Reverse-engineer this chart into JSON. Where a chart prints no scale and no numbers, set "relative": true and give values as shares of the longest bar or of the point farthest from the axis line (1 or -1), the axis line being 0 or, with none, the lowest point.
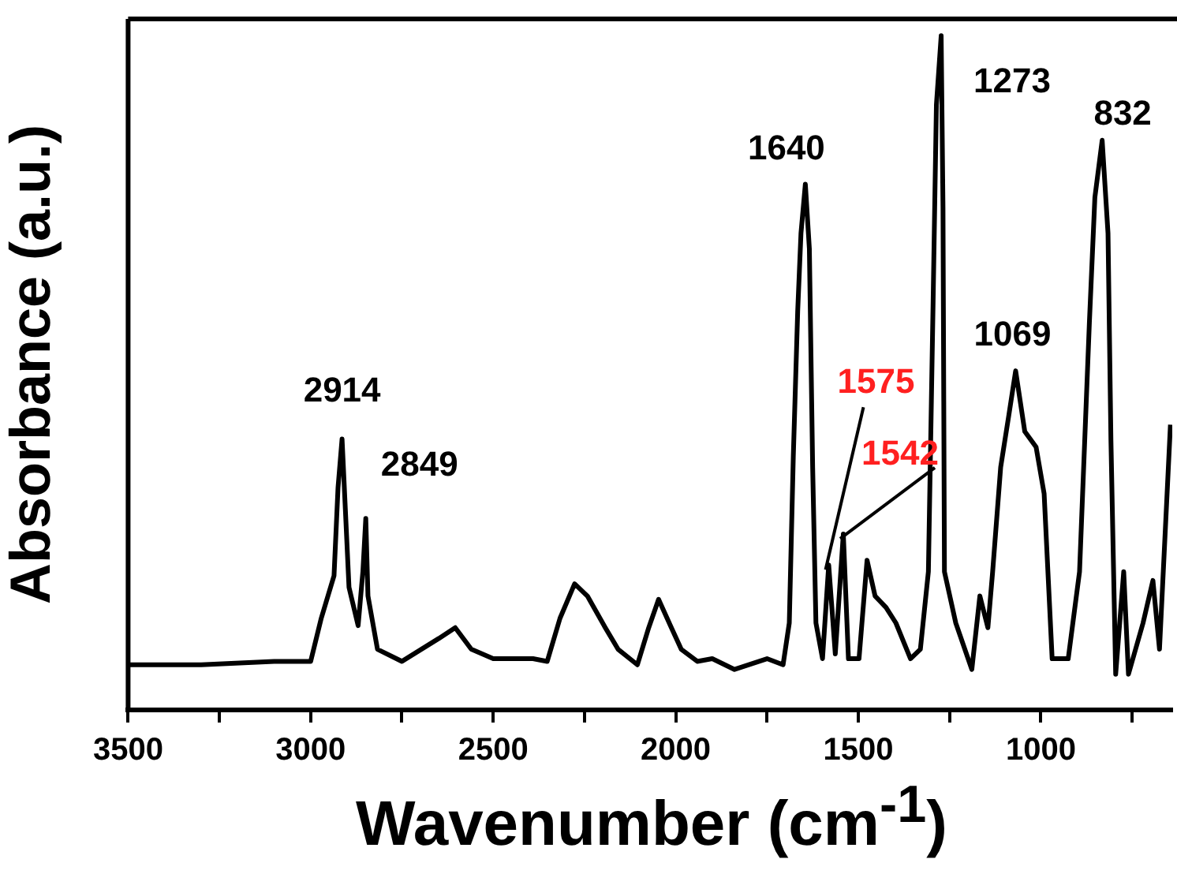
{
  "chart_data": {
    "type": "line",
    "relative": true,
    "xlabel": "Wavenumber (cm$^{-1}$)",
    "ylabel": "Absorbance (a.u.)",
    "xlim": [
      3500,
      640
    ],
    "xticks": [
      3500,
      {
        "value": 3250,
        "label": null
      },
      3000,
      {
        "value": 2750,
        "label": null
      },
      2500,
      {
        "value": 2250,
        "label": null
      },
      2000,
      {
        "value": 1750,
        "label": null
      },
      1500,
      {
        "value": 1250,
        "label": null
      },
      1000,
      {
        "value": 750,
        "label": null
      }
    ],
    "grid": false,
    "legend": false,
    "marker": "none",
    "line_style": "solid",
    "series": [
      {
        "color": "#000000",
        "x": [
          3500,
          3300,
          3100,
          3000,
          2971,
          2936,
          2925,
          2914,
          2905,
          2895,
          2870,
          2857,
          2849,
          2843,
          2817,
          2750,
          2649,
          2604,
          2560,
          2500,
          2391,
          2352,
          2317,
          2277,
          2242,
          2193,
          2158,
          2105,
          2074,
          2047,
          2012,
          1985,
          1941,
          1900,
          1839,
          1750,
          1706,
          1689,
          1678,
          1666,
          1657,
          1645,
          1634,
          1625,
          1616,
          1598,
          1581,
          1563,
          1541,
          1527,
          1498,
          1476,
          1454,
          1424,
          1397,
          1357,
          1330,
          1308,
          1295,
          1286,
          1273,
          1268,
          1264,
          1233,
          1189,
          1167,
          1145,
          1132,
          1110,
          1088,
          1069,
          1044,
          1013,
          991,
          969,
          925,
          894,
          867,
          852,
          832,
          816,
          808,
          795,
          773,
          760,
          720,
          693,
          675,
          645
        ],
        "values": [
          0.067,
          0.067,
          0.072,
          0.072,
          0.136,
          0.199,
          0.33,
          0.402,
          0.298,
          0.182,
          0.125,
          0.205,
          0.284,
          0.169,
          0.09,
          0.072,
          0.106,
          0.122,
          0.09,
          0.076,
          0.076,
          0.072,
          0.136,
          0.187,
          0.169,
          0.122,
          0.09,
          0.067,
          0.122,
          0.164,
          0.122,
          0.09,
          0.072,
          0.076,
          0.06,
          0.076,
          0.067,
          0.129,
          0.376,
          0.591,
          0.707,
          0.78,
          0.684,
          0.36,
          0.129,
          0.076,
          0.215,
          0.083,
          0.261,
          0.076,
          0.076,
          0.222,
          0.169,
          0.152,
          0.129,
          0.076,
          0.09,
          0.205,
          0.607,
          0.898,
          1.0,
          0.746,
          0.205,
          0.129,
          0.06,
          0.169,
          0.122,
          0.205,
          0.36,
          0.436,
          0.503,
          0.413,
          0.39,
          0.321,
          0.076,
          0.076,
          0.205,
          0.575,
          0.76,
          0.845,
          0.707,
          0.4,
          0.053,
          0.205,
          0.053,
          0.129,
          0.192,
          0.09,
          0.423
        ]
      }
    ],
    "annotations": [
      {
        "text": "2914",
        "x": 2914,
        "y": 0.402
      },
      {
        "text": "2849",
        "x": 2849,
        "y": 0.284
      },
      {
        "text": "1640",
        "x": 1645,
        "y": 0.78
      },
      {
        "text": "1575",
        "x": 1581,
        "y": 0.215
      },
      {
        "text": "1542",
        "x": 1541,
        "y": 0.261
      },
      {
        "text": "1273",
        "x": 1273,
        "y": 1.0
      },
      {
        "text": "1069",
        "x": 1069,
        "y": 0.503
      },
      {
        "text": "832",
        "x": 832,
        "y": 0.845
      }
    ]
  }
}
